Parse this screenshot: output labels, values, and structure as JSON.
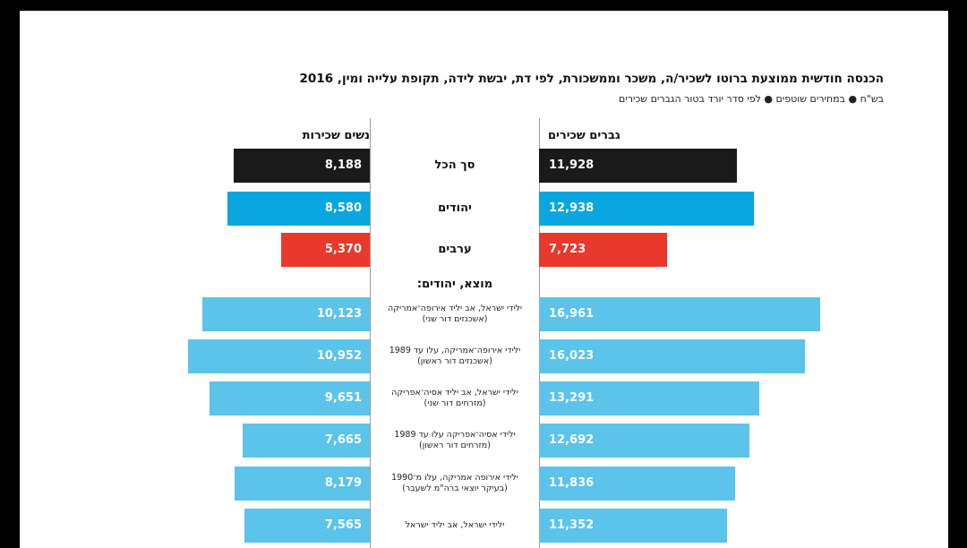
{
  "title": "הכנסה חודשית ממוצעת ברוטו לשכיר/ה, משכר וממשכורת, לפי דת, יבשת לידה, תקופת עלייה ומין, 2016",
  "subtitle": "בש\"ח ● במחירים שוטפים ● לפי סדר יורד בטור הגברים שכירים",
  "colors": {
    "total": "#1a1a1a",
    "jews": "#0aa6e0",
    "arabs": "#e8392c",
    "origin": "#5cc3ea",
    "value_text": "#ffffff"
  },
  "chart_data": {
    "type": "bar",
    "orientation": "horizontal-butterfly",
    "left_header": "נשים שכירות",
    "right_header": "גברים שכירים",
    "section_label": "מוצא, יהודים:",
    "categories": [
      {
        "label": "סך הכל",
        "sub": [],
        "women": 8188,
        "men": 11928,
        "women_text": "8,188",
        "men_text": "11,928",
        "color_key": "total"
      },
      {
        "label": "יהודים",
        "sub": [],
        "women": 8580,
        "men": 12938,
        "women_text": "8,580",
        "men_text": "12,938",
        "color_key": "jews"
      },
      {
        "label": "ערבים",
        "sub": [],
        "women": 5370,
        "men": 7723,
        "women_text": "5,370",
        "men_text": "7,723",
        "color_key": "arabs"
      },
      {
        "label": "",
        "sub": [
          "ילידי ישראל, אב יליד אירופה־אמריקה",
          "(אשכנזים דור שני)"
        ],
        "women": 10123,
        "men": 16961,
        "women_text": "10,123",
        "men_text": "16,961",
        "color_key": "origin"
      },
      {
        "label": "",
        "sub": [
          "ילידי אירופה־אמריקה, עלו עד 1989",
          "(אשכנזים דור ראשון)"
        ],
        "women": 10952,
        "men": 16023,
        "women_text": "10,952",
        "men_text": "16,023",
        "color_key": "origin"
      },
      {
        "label": "",
        "sub": [
          "ילידי ישראל, אב יליד אסיה־אפריקה",
          "(מזרחים דור שני)"
        ],
        "women": 9651,
        "men": 13291,
        "women_text": "9,651",
        "men_text": "13,291",
        "color_key": "origin"
      },
      {
        "label": "",
        "sub": [
          "ילידי אסיה־אפריקה עלו עד 1989",
          "(מזרחים דור ראשון)"
        ],
        "women": 7665,
        "men": 12692,
        "women_text": "7,665",
        "men_text": "12,692",
        "color_key": "origin"
      },
      {
        "label": "",
        "sub": [
          "ילידי אירופה אמריקה, עלו מ־1990",
          "(בעיקר יוצאי ברה\"מ לשעבר)"
        ],
        "women": 8179,
        "men": 11836,
        "women_text": "8,179",
        "men_text": "11,836",
        "color_key": "origin"
      },
      {
        "label": "",
        "sub": [
          "ילידי ישראל, אב יליד ישראל"
        ],
        "women": 7565,
        "men": 11352,
        "women_text": "7,565",
        "men_text": "11,352",
        "color_key": "origin"
      }
    ]
  }
}
